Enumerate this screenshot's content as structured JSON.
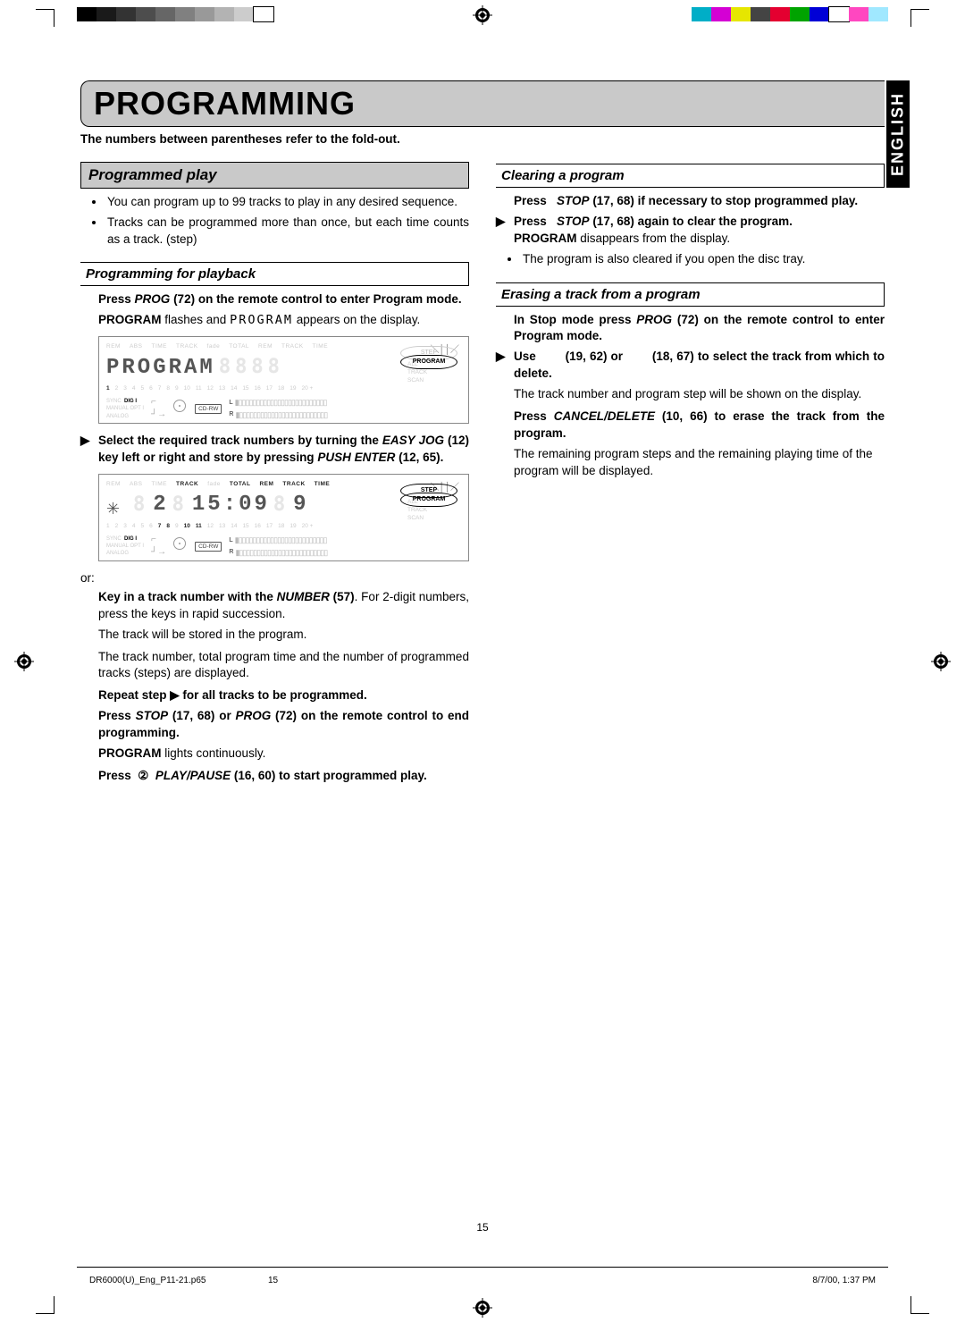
{
  "page": {
    "title": "PROGRAMMING",
    "subtitle": "The numbers between parentheses refer to the fold-out.",
    "side_tab": "ENGLISH",
    "page_number": "15"
  },
  "footer": {
    "file": "DR6000(U)_Eng_P11-21.p65",
    "page": "15",
    "datetime": "8/7/00, 1:37 PM"
  },
  "colorbar_left": [
    "#000000",
    "#1a1a1a",
    "#333333",
    "#4d4d4d",
    "#666666",
    "#808080",
    "#999999",
    "#b3b3b3",
    "#cccccc",
    "#ffffff"
  ],
  "colorbar_right": [
    "#00aec7",
    "#d400d4",
    "#e6e600",
    "#444444",
    "#e40030",
    "#00a300",
    "#0000d6",
    "#ffffff",
    "#ff47c0",
    "#a0e8ff"
  ],
  "left_col": {
    "sec1_head": "Programmed play",
    "bullets": [
      "You can program up to 99 tracks to play in any desired sequence.",
      "Tracks can be programmed more than once, but each time counts as a track. (step)"
    ],
    "sub1_head": "Programming for playback",
    "step1": "Press PROG (72) on the remote control to enter Program mode.",
    "step1_note": "PROGRAM flashes and PROGRAM appears on the display.",
    "lcd1": {
      "labels": [
        "REM",
        "ABS",
        "TIME",
        "TRACK",
        "fade",
        "TOTAL",
        "REM",
        "TRACK",
        "TIME"
      ],
      "main": "PROGRAM",
      "side": [
        "STEP",
        "PROGRAM",
        "ALL",
        "TRACK",
        "SCAN"
      ],
      "badge_active": "PROGRAM",
      "numbers_active": [
        "1"
      ],
      "numbers": [
        "1",
        "2",
        "3",
        "4",
        "5",
        "6",
        "7",
        "8",
        "9",
        "10",
        "11",
        "12",
        "13",
        "14",
        "15",
        "16",
        "17",
        "18",
        "19",
        "20 +"
      ],
      "src_labels": [
        "SYNC",
        "DIG I",
        "MANUAL",
        "OPT I",
        "ANALOG"
      ],
      "src_active": "DIG I",
      "cdrw": "CD-RW",
      "meters": [
        "L",
        "R"
      ]
    },
    "step2": "Select the required track numbers by turning the EASY JOG (12) key left or right and store by pressing PUSH ENTER (12, 65).",
    "lcd2": {
      "labels": [
        "REM",
        "ABS",
        "TIME",
        "TRACK",
        "fade",
        "TOTAL",
        "REM",
        "TRACK",
        "TIME"
      ],
      "track": "2",
      "time": "15:09",
      "step": "9",
      "labels_active": [
        "TRACK",
        "TOTAL",
        "REM",
        "TRACK",
        "TIME"
      ],
      "side": [
        "STEP",
        "PROGRAM",
        "ALL",
        "TRACK",
        "SCAN"
      ],
      "badge_actives": [
        "STEP",
        "PROGRAM"
      ],
      "numbers_active": [
        "7",
        "8",
        "10",
        "11"
      ],
      "numbers": [
        "1",
        "2",
        "3",
        "4",
        "5",
        "6",
        "7",
        "8",
        "9",
        "10",
        "11",
        "12",
        "13",
        "14",
        "15",
        "16",
        "17",
        "18",
        "19",
        "20 +"
      ],
      "src_labels": [
        "SYNC",
        "DIG I",
        "MANUAL",
        "OPT I",
        "ANALOG"
      ],
      "src_active": "DIG I",
      "cdrw": "CD-RW",
      "meters": [
        "L",
        "R"
      ]
    },
    "or": "or:",
    "or_step": "Key in a track number with the NUMBER (57). For 2-digit numbers, press the keys in rapid succession.",
    "or_note1": "The track will be stored in the program.",
    "or_note2": "The track number, total program time and the number of programmed tracks (steps) are displayed.",
    "repeat": "Repeat step ▶ for all tracks to be programmed.",
    "step3": "Press STOP (17, 68) or PROG (72) on the remote control to end programming.",
    "step3_note": "PROGRAM lights continuously.",
    "step4_pre": "Press ",
    "step4_circ": "②",
    "step4_post": "  PLAY/PAUSE (16, 60) to start programmed play."
  },
  "right_col": {
    "sub1_head": "Clearing a program",
    "c_step1": "Press   STOP (17, 68) if necessary to stop programmed play.",
    "c_step2a": "Press   STOP (17, 68) again to clear the program.",
    "c_step2b": "PROGRAM disappears from the display.",
    "c_bullet": "The program is also cleared if you open the disc tray.",
    "sub2_head": "Erasing a track from a program",
    "e_step1": "In Stop mode press PROG (72) on the remote control to enter Program mode.",
    "e_step2a": "Use       (19, 62) or       (18, 67) to select the track from which to delete.",
    "e_step2b": "The track number and program step will be shown on the display.",
    "e_step3a": "Press CANCEL/DELETE (10, 66) to erase the track from the program.",
    "e_step3b": "The remaining program steps and the remaining playing time of the program will be displayed."
  }
}
